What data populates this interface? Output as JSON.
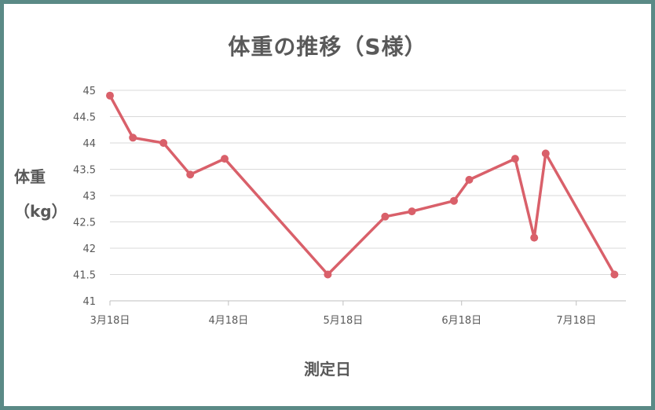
{
  "colors": {
    "frame": "#5b8a86",
    "line": "#d9606a",
    "grid": "#d9d9d9",
    "text": "#595959"
  },
  "chart_data": {
    "type": "line",
    "title": "体重の推移（S様）",
    "ylabel": "体重（kg）",
    "ylabel_lines": [
      "体重",
      "（kg）"
    ],
    "xlabel": "測定日",
    "ylim": [
      41,
      45
    ],
    "yticks": [
      "41",
      "41.5",
      "42",
      "42.5",
      "43",
      "43.5",
      "44",
      "44.5",
      "45"
    ],
    "xlim": [
      "2023-03-18",
      "2023-07-31"
    ],
    "xticks": [
      {
        "date": "2023-03-18",
        "label": "3月18日"
      },
      {
        "date": "2023-04-18",
        "label": "4月18日"
      },
      {
        "date": "2023-05-18",
        "label": "5月18日"
      },
      {
        "date": "2023-06-18",
        "label": "6月18日"
      },
      {
        "date": "2023-07-18",
        "label": "7月18日"
      }
    ],
    "grid": true,
    "legend": false,
    "series": [
      {
        "points": [
          {
            "x": "2023-03-18",
            "y": 44.9
          },
          {
            "x": "2023-03-24",
            "y": 44.1
          },
          {
            "x": "2023-04-01",
            "y": 44.0
          },
          {
            "x": "2023-04-08",
            "y": 43.4
          },
          {
            "x": "2023-04-17",
            "y": 43.7
          },
          {
            "x": "2023-05-14",
            "y": 41.5
          },
          {
            "x": "2023-05-29",
            "y": 42.6
          },
          {
            "x": "2023-06-05",
            "y": 42.7
          },
          {
            "x": "2023-06-16",
            "y": 42.9
          },
          {
            "x": "2023-06-20",
            "y": 43.3
          },
          {
            "x": "2023-07-02",
            "y": 43.7
          },
          {
            "x": "2023-07-07",
            "y": 42.2
          },
          {
            "x": "2023-07-10",
            "y": 43.8
          },
          {
            "x": "2023-07-28",
            "y": 41.5
          }
        ]
      }
    ]
  }
}
